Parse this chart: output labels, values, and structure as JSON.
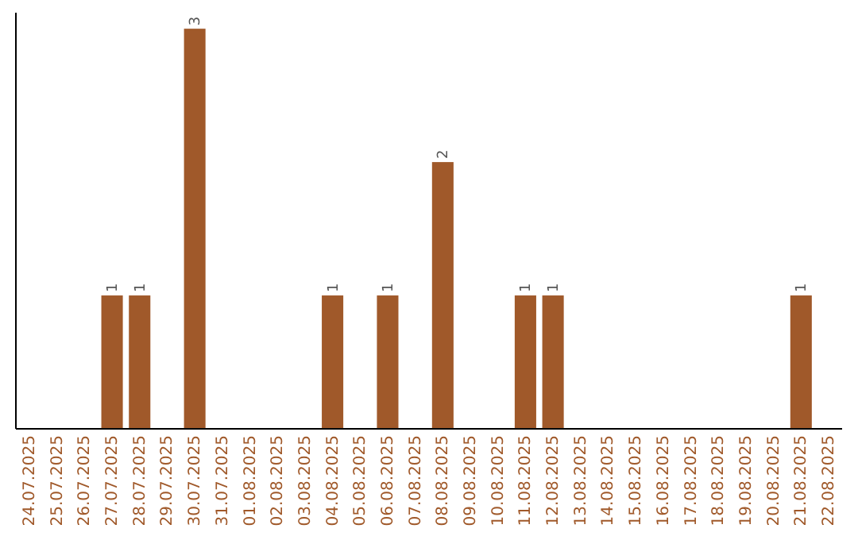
{
  "chart_data": {
    "type": "bar",
    "categories": [
      "24.07.2025",
      "25.07.2025",
      "26.07.2025",
      "27.07.2025",
      "28.07.2025",
      "29.07.2025",
      "30.07.2025",
      "31.07.2025",
      "01.08.2025",
      "02.08.2025",
      "03.08.2025",
      "04.08.2025",
      "05.08.2025",
      "06.08.2025",
      "07.08.2025",
      "08.08.2025",
      "09.08.2025",
      "10.08.2025",
      "11.08.2025",
      "12.08.2025",
      "13.08.2025",
      "14.08.2025",
      "15.08.2025",
      "16.08.2025",
      "17.08.2025",
      "18.08.2025",
      "19.08.2025",
      "20.08.2025",
      "21.08.2025",
      "22.08.2025"
    ],
    "values": [
      0,
      0,
      0,
      1,
      1,
      0,
      3,
      0,
      0,
      0,
      0,
      1,
      0,
      1,
      0,
      2,
      0,
      0,
      1,
      1,
      0,
      0,
      0,
      0,
      0,
      0,
      0,
      0,
      1,
      0
    ],
    "value_labels": [
      null,
      null,
      null,
      "1",
      "1",
      null,
      "3",
      null,
      null,
      null,
      null,
      "1",
      null,
      "1",
      null,
      "2",
      null,
      null,
      "1",
      "1",
      null,
      null,
      null,
      null,
      null,
      null,
      null,
      null,
      "1",
      null
    ],
    "color": "#a0592a"
  }
}
